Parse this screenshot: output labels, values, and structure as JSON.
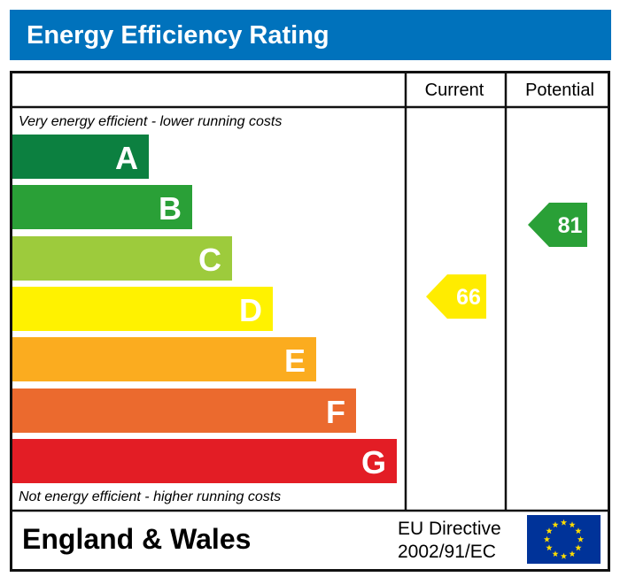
{
  "title": "Energy Efficiency Rating",
  "columns": {
    "current": "Current",
    "potential": "Potential"
  },
  "top_note": "Very energy efficient - lower running costs",
  "bottom_note": "Not energy efficient - higher running costs",
  "footer": {
    "region": "England & Wales",
    "directive_line1": "EU Directive",
    "directive_line2": "2002/91/EC",
    "flag_icon": "eu-flag-icon"
  },
  "colors": {
    "header": "#0072bc",
    "eu_blue": "#003399",
    "eu_star": "#ffdd00"
  },
  "chart_data": {
    "type": "bar",
    "categories": [
      "A",
      "B",
      "C",
      "D",
      "E",
      "F",
      "G"
    ],
    "band_colors": [
      "#0c8040",
      "#2aa037",
      "#9dcb3c",
      "#fff200",
      "#fbac1f",
      "#eb6a2e",
      "#e31d25"
    ],
    "current": {
      "value": 66,
      "band": "D",
      "color": "#ffec00"
    },
    "potential": {
      "value": 81,
      "band": "B",
      "color": "#2aa037"
    }
  }
}
